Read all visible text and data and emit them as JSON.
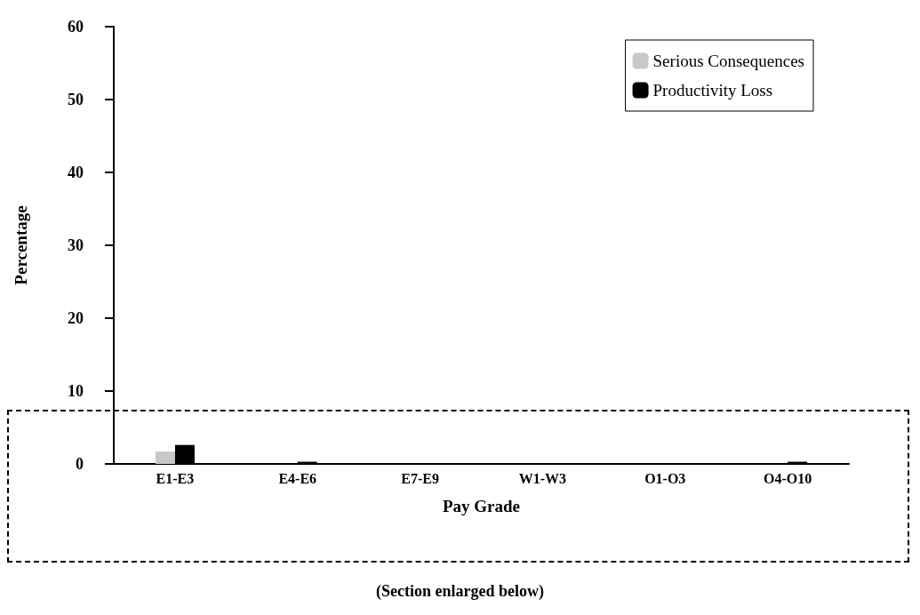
{
  "chart_data": {
    "type": "bar",
    "xlabel": "Pay Grade",
    "ylabel": "Percentage",
    "categories": [
      "E1-E3",
      "E4-E6",
      "E7-E9",
      "W1-W3",
      "O1-O3",
      "O4-O10"
    ],
    "series": [
      {
        "name": "Serious Consequences",
        "color": "#c8c8c8",
        "values": [
          1.7,
          0,
          0,
          0,
          0,
          0
        ]
      },
      {
        "name": "Productivity Loss",
        "color": "#000000",
        "values": [
          2.6,
          0.3,
          0,
          0,
          0,
          0.3
        ]
      }
    ],
    "ylim": [
      0,
      60
    ],
    "yticks": [
      0,
      10,
      20,
      30,
      40,
      50,
      60
    ],
    "grid": false,
    "legend": "top right",
    "annotations": [
      "(Section enlarged below)"
    ]
  }
}
